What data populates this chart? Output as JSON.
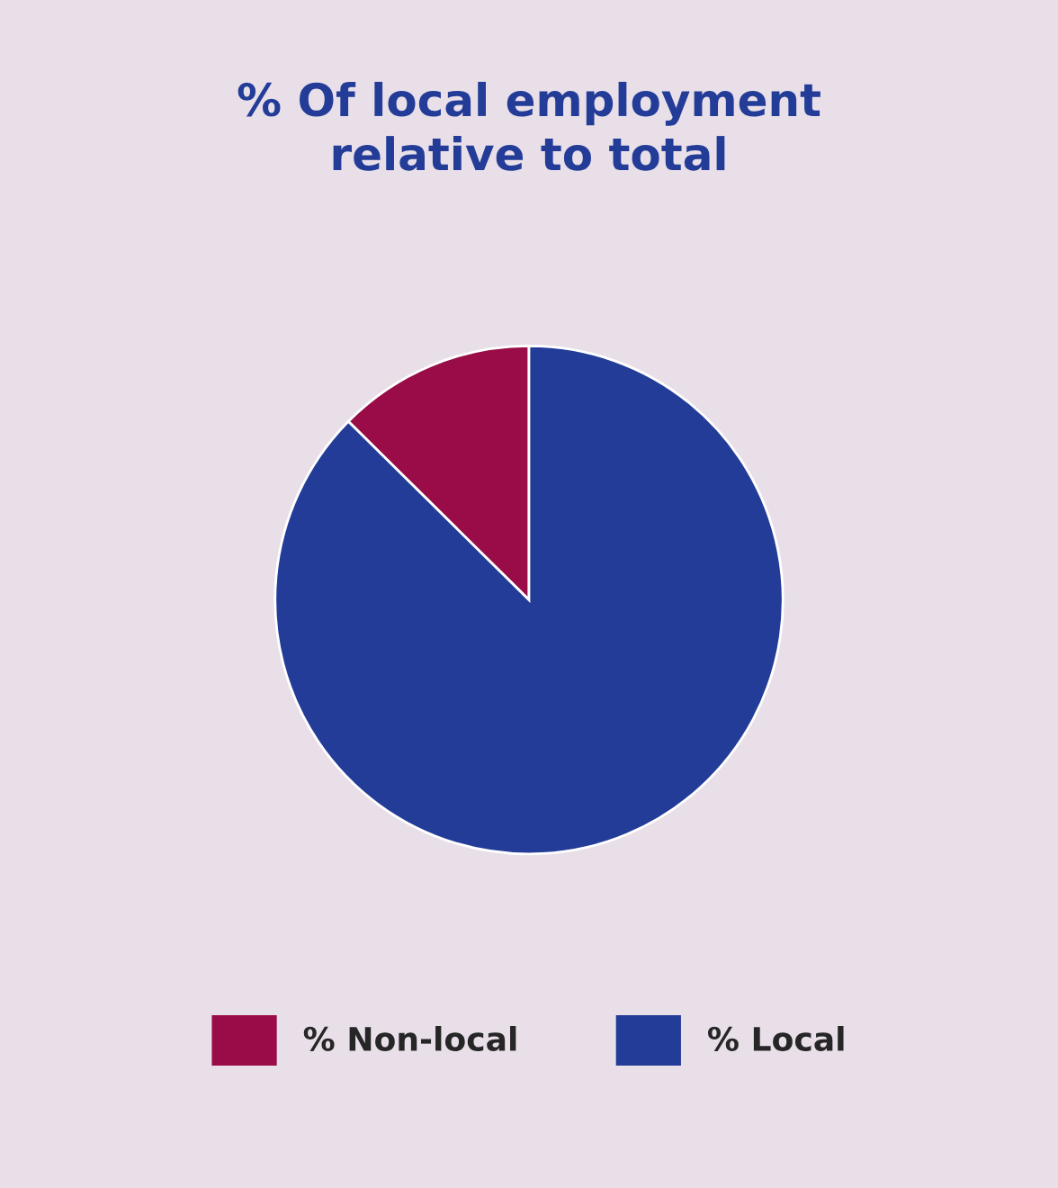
{
  "chart_data": {
    "type": "pie",
    "title": "% Of local employment\nrelative to total",
    "categories": [
      "% Non-local",
      "% Local"
    ],
    "values": [
      12.6,
      87.4
    ],
    "colors": [
      "#990c47",
      "#233c98"
    ],
    "legend": "bottom"
  }
}
